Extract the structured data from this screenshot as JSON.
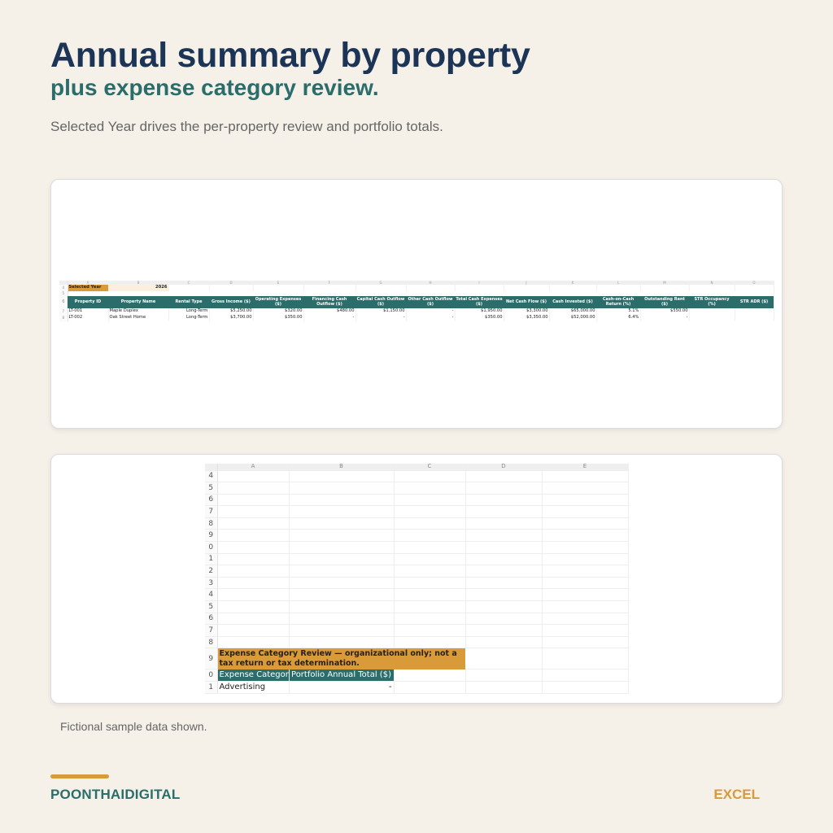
{
  "header": {
    "title": "Annual summary by property",
    "subtitle": "plus expense category review.",
    "description": "Selected Year drives the per-property review and portfolio totals."
  },
  "summary_sheet": {
    "columns": [
      "A",
      "B",
      "C",
      "D",
      "E",
      "F",
      "G",
      "H",
      "I",
      "J",
      "K",
      "L",
      "M",
      "N",
      "O"
    ],
    "selected_year": {
      "row": "4",
      "label": "Selected Year",
      "value": "2026"
    },
    "blank_row": "5",
    "header_row": "6",
    "headers": [
      "Property ID",
      "Property Name",
      "Rental Type",
      "Gross Income ($)",
      "Operating Expenses ($)",
      "Financing Cash Outflow ($)",
      "Capital Cash Outflow ($)",
      "Other Cash Outflow ($)",
      "Total Cash Expenses ($)",
      "Net Cash Flow ($)",
      "Cash Invested ($)",
      "Cash-on-Cash Return (%)",
      "Outstanding Rent ($)",
      "STR Occupancy (%)",
      "STR ADR ($)"
    ],
    "rows": [
      {
        "row": "7",
        "cells": [
          "LT-001",
          "Maple Duplex",
          "Long-Term",
          "$5,250.00",
          "$320.00",
          "$480.00",
          "$1,150.00",
          "-",
          "$1,950.00",
          "$3,300.00",
          "$65,000.00",
          "5.1%",
          "$550.00",
          "",
          ""
        ]
      },
      {
        "row": "8",
        "cells": [
          "LT-002",
          "Oak Street Home",
          "Long-Term",
          "$3,700.00",
          "$350.00",
          "-",
          "-",
          "-",
          "$350.00",
          "$3,350.00",
          "$52,000.00",
          "6.4%",
          "-",
          "",
          ""
        ]
      }
    ]
  },
  "expense_sheet": {
    "columns": [
      "A",
      "B",
      "C",
      "D",
      "E"
    ],
    "row_numbers": [
      "4",
      "5",
      "6",
      "7",
      "8",
      "9",
      "0",
      "1",
      "2",
      "3",
      "4",
      "5",
      "6",
      "7",
      "8"
    ],
    "banner_row": "9",
    "banner": "Expense Category Review — organizational only; not a tax return or tax determination.",
    "header_row": "0",
    "headers": [
      "Expense Category",
      "Portfolio Annual Total ($)"
    ],
    "rows": [
      {
        "row": "1",
        "category": "Advertising",
        "total": "-"
      }
    ]
  },
  "footer": {
    "note": "Fictional sample data shown.",
    "brand": "POONTHAIDIGITAL",
    "tag": "EXCEL"
  },
  "colors": {
    "navy": "#1c3557",
    "teal": "#2b6d6a",
    "gold": "#d99a3a",
    "background": "#f5f0e8"
  }
}
